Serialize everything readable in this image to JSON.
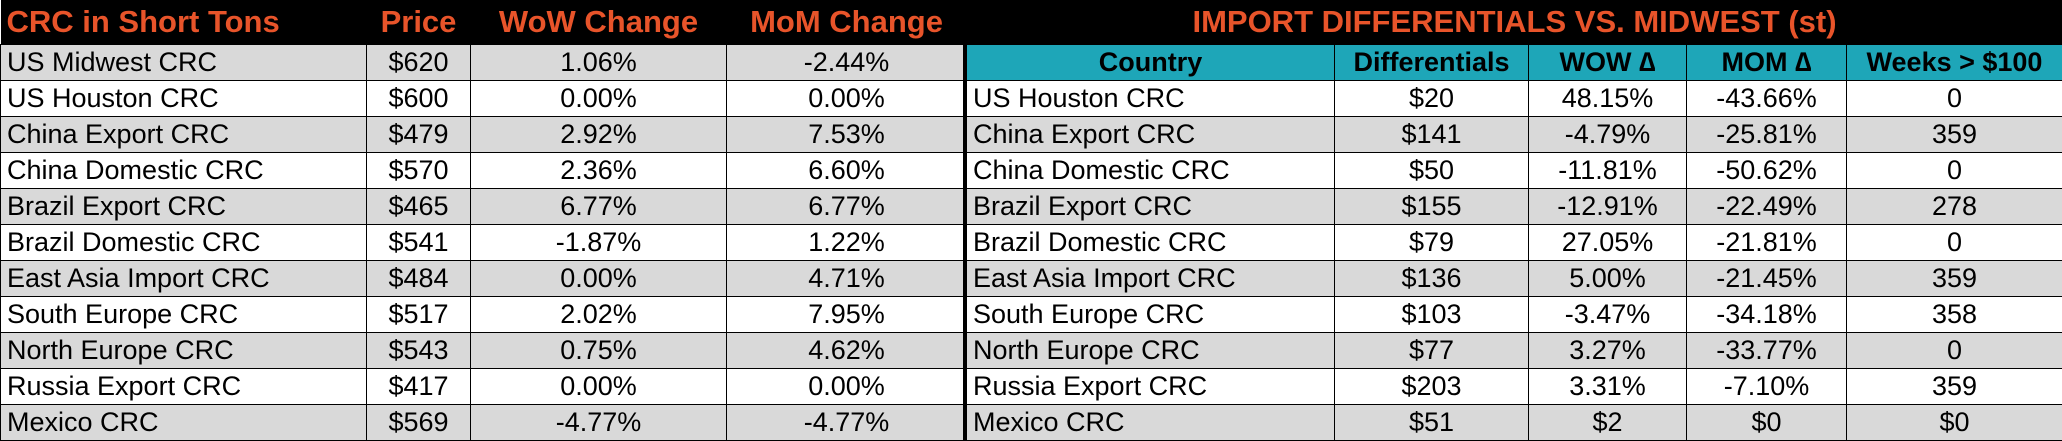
{
  "left": {
    "headers": [
      "CRC in Short Tons",
      "Price",
      "WoW Change",
      "MoM Change"
    ],
    "rows": [
      [
        "US Midwest CRC",
        "$620",
        "1.06%",
        "-2.44%"
      ],
      [
        "US Houston CRC",
        "$600",
        "0.00%",
        "0.00%"
      ],
      [
        "China Export CRC",
        "$479",
        "2.92%",
        "7.53%"
      ],
      [
        "China Domestic CRC",
        "$570",
        "2.36%",
        "6.60%"
      ],
      [
        "Brazil Export CRC",
        "$465",
        "6.77%",
        "6.77%"
      ],
      [
        "Brazil Domestic CRC",
        "$541",
        "-1.87%",
        "1.22%"
      ],
      [
        "East Asia Import CRC",
        "$484",
        "0.00%",
        "4.71%"
      ],
      [
        "South Europe CRC",
        "$517",
        "2.02%",
        "7.95%"
      ],
      [
        "North Europe CRC",
        "$543",
        "0.75%",
        "4.62%"
      ],
      [
        "Russia Export CRC",
        "$417",
        "0.00%",
        "0.00%"
      ],
      [
        "Mexico CRC",
        "$569",
        "-4.77%",
        "-4.77%"
      ]
    ]
  },
  "right": {
    "title": "IMPORT DIFFERENTIALS VS. MIDWEST (st)",
    "headers": [
      "Country",
      "Differentials",
      "WOW ∆",
      "MOM ∆",
      "Weeks > $100"
    ],
    "rows": [
      [
        "US Houston CRC",
        "$20",
        "48.15%",
        "-43.66%",
        "0"
      ],
      [
        "China Export CRC",
        "$141",
        "-4.79%",
        "-25.81%",
        "359"
      ],
      [
        "China Domestic CRC",
        "$50",
        "-11.81%",
        "-50.62%",
        "0"
      ],
      [
        "Brazil Export CRC",
        "$155",
        "-12.91%",
        "-22.49%",
        "278"
      ],
      [
        "Brazil Domestic CRC",
        "$79",
        "27.05%",
        "-21.81%",
        "0"
      ],
      [
        "East Asia Import CRC",
        "$136",
        "5.00%",
        "-21.45%",
        "359"
      ],
      [
        "South Europe CRC",
        "$103",
        "-3.47%",
        "-34.18%",
        "358"
      ],
      [
        "North Europe CRC",
        "$77",
        "3.27%",
        "-33.77%",
        "0"
      ],
      [
        "Russia Export CRC",
        "$203",
        "3.31%",
        "-7.10%",
        "359"
      ],
      [
        "Mexico CRC",
        "$51",
        "$2",
        "$0",
        "$0"
      ]
    ]
  },
  "colors": {
    "header_bg": "#000000",
    "header_text": "#e8542a",
    "teal_header": "#1ea6b8",
    "row_gray": "#d9d9d9",
    "row_white": "#ffffff"
  }
}
